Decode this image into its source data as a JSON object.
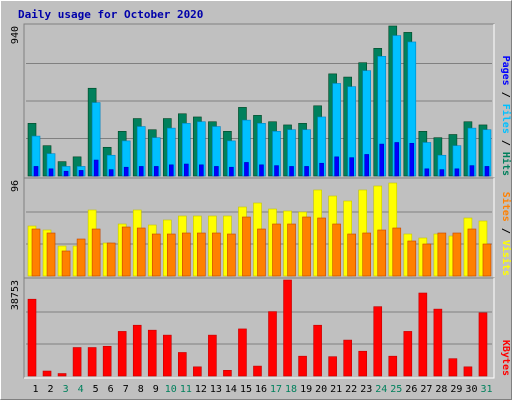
{
  "title": "Daily usage for October 2020",
  "colors": {
    "hits": "#00805c",
    "files": "#00c0ff",
    "pages": "#0000ff",
    "visits": "#ffff00",
    "sites": "#ff8000",
    "kbytes": "#ff0000",
    "weekday": "#000000",
    "weekend": "#00805c",
    "title": "#0000aa",
    "panel": "#c0c0c0",
    "grid": "#808080"
  },
  "chart_data": [
    {
      "type": "bar",
      "panel": "hits-files-pages",
      "y_max_label": "940",
      "ylim": [
        0,
        940
      ],
      "right_label": {
        "parts": [
          "Pages",
          "Files",
          "Hits"
        ],
        "separator": " / "
      },
      "categories": [
        "1",
        "2",
        "3",
        "4",
        "5",
        "6",
        "7",
        "8",
        "9",
        "10",
        "11",
        "12",
        "13",
        "14",
        "15",
        "16",
        "17",
        "18",
        "19",
        "20",
        "21",
        "22",
        "23",
        "24",
        "25",
        "26",
        "27",
        "28",
        "29",
        "30",
        "31"
      ],
      "series": [
        {
          "name": "Hits",
          "values": [
            330,
            190,
            90,
            120,
            550,
            180,
            280,
            360,
            290,
            360,
            390,
            370,
            340,
            280,
            430,
            380,
            340,
            320,
            330,
            440,
            640,
            620,
            710,
            800,
            940,
            900,
            280,
            240,
            260,
            340,
            320
          ]
        },
        {
          "name": "Files",
          "values": [
            250,
            140,
            60,
            60,
            460,
            130,
            220,
            310,
            240,
            300,
            330,
            340,
            310,
            220,
            350,
            330,
            280,
            290,
            290,
            370,
            580,
            560,
            660,
            750,
            880,
            840,
            210,
            130,
            190,
            300,
            290
          ]
        },
        {
          "name": "Pages",
          "values": [
            60,
            45,
            30,
            35,
            100,
            40,
            55,
            60,
            60,
            70,
            75,
            70,
            60,
            55,
            85,
            70,
            65,
            60,
            60,
            80,
            120,
            115,
            135,
            200,
            210,
            205,
            45,
            40,
            45,
            65,
            60
          ]
        }
      ]
    },
    {
      "type": "bar",
      "panel": "visits-sites",
      "y_max_label": "96",
      "ylim": [
        0,
        96
      ],
      "right_label": {
        "parts": [
          "Sites",
          "Visits"
        ],
        "separator": " / "
      },
      "categories": [
        "1",
        "2",
        "3",
        "4",
        "5",
        "6",
        "7",
        "8",
        "9",
        "10",
        "11",
        "12",
        "13",
        "14",
        "15",
        "16",
        "17",
        "18",
        "19",
        "20",
        "21",
        "22",
        "23",
        "24",
        "25",
        "26",
        "27",
        "28",
        "29",
        "30",
        "31"
      ],
      "series": [
        {
          "name": "Visits",
          "values": [
            50,
            46,
            30,
            30,
            66,
            33,
            52,
            66,
            51,
            56,
            60,
            60,
            60,
            60,
            69,
            73,
            67,
            65,
            64,
            86,
            80,
            75,
            86,
            90,
            93,
            42,
            38,
            42,
            40,
            58,
            55
          ]
        },
        {
          "name": "Sites",
          "values": [
            47,
            43,
            25,
            37,
            47,
            33,
            49,
            48,
            42,
            42,
            43,
            43,
            43,
            42,
            59,
            47,
            52,
            52,
            59,
            58,
            52,
            42,
            43,
            46,
            48,
            35,
            32,
            43,
            43,
            47,
            32
          ]
        }
      ]
    },
    {
      "type": "bar",
      "panel": "kbytes",
      "y_max_label": "38753",
      "ylim": [
        0,
        38753
      ],
      "right_label": {
        "parts": [
          "KBytes"
        ],
        "separator": ""
      },
      "categories": [
        "1",
        "2",
        "3",
        "4",
        "5",
        "6",
        "7",
        "8",
        "9",
        "10",
        "11",
        "12",
        "13",
        "14",
        "15",
        "16",
        "17",
        "18",
        "19",
        "20",
        "21",
        "22",
        "23",
        "24",
        "25",
        "26",
        "27",
        "28",
        "29",
        "30",
        "31"
      ],
      "series": [
        {
          "name": "KBytes",
          "values": [
            31000,
            2000,
            1000,
            11500,
            11500,
            12000,
            18000,
            20500,
            18500,
            16500,
            9500,
            3700,
            16500,
            2300,
            19000,
            4000,
            26000,
            38753,
            8000,
            20500,
            7800,
            14500,
            10000,
            28000,
            8000,
            18000,
            33500,
            27000,
            7000,
            3700,
            25500
          ]
        }
      ]
    }
  ],
  "x_labels": [
    {
      "day": "1",
      "weekend": false
    },
    {
      "day": "2",
      "weekend": false
    },
    {
      "day": "3",
      "weekend": true
    },
    {
      "day": "4",
      "weekend": true
    },
    {
      "day": "5",
      "weekend": false
    },
    {
      "day": "6",
      "weekend": false
    },
    {
      "day": "7",
      "weekend": false
    },
    {
      "day": "8",
      "weekend": false
    },
    {
      "day": "9",
      "weekend": false
    },
    {
      "day": "10",
      "weekend": true
    },
    {
      "day": "11",
      "weekend": true
    },
    {
      "day": "12",
      "weekend": false
    },
    {
      "day": "13",
      "weekend": false
    },
    {
      "day": "14",
      "weekend": false
    },
    {
      "day": "15",
      "weekend": false
    },
    {
      "day": "16",
      "weekend": false
    },
    {
      "day": "17",
      "weekend": true
    },
    {
      "day": "18",
      "weekend": true
    },
    {
      "day": "19",
      "weekend": false
    },
    {
      "day": "20",
      "weekend": false
    },
    {
      "day": "21",
      "weekend": false
    },
    {
      "day": "22",
      "weekend": false
    },
    {
      "day": "23",
      "weekend": false
    },
    {
      "day": "24",
      "weekend": true
    },
    {
      "day": "25",
      "weekend": true
    },
    {
      "day": "26",
      "weekend": false
    },
    {
      "day": "27",
      "weekend": false
    },
    {
      "day": "28",
      "weekend": false
    },
    {
      "day": "29",
      "weekend": false
    },
    {
      "day": "30",
      "weekend": false
    },
    {
      "day": "31",
      "weekend": true
    }
  ]
}
